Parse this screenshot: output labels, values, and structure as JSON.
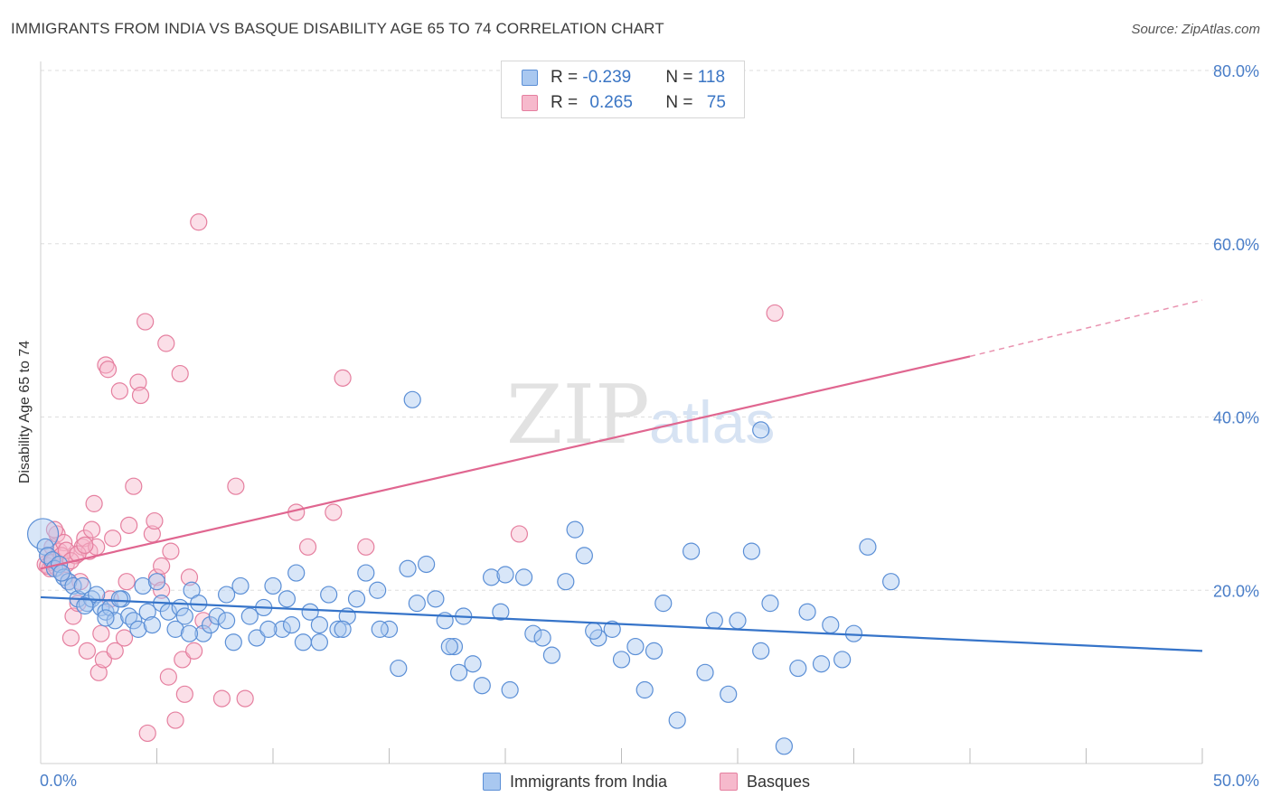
{
  "title": "IMMIGRANTS FROM INDIA VS BASQUE DISABILITY AGE 65 TO 74 CORRELATION CHART",
  "source": "Source: ZipAtlas.com",
  "watermark": {
    "zip": "ZIP",
    "atlas": "atlas"
  },
  "legend": {
    "series1": {
      "r_label": "R = ",
      "r_value": "-0.239",
      "n_label": "N = ",
      "n_value": "118"
    },
    "series2": {
      "r_label": "R = ",
      "r_value": "0.265",
      "n_label": "N = ",
      "n_value": "75"
    }
  },
  "colors": {
    "blue_fill": "#a9c8f0",
    "blue_stroke": "#5b8fd6",
    "blue_line": "#3674c9",
    "pink_fill": "#f6b9cc",
    "pink_stroke": "#e57f9f",
    "pink_line": "#e06690",
    "grid": "#dedede",
    "tick": "#4a7ec8"
  },
  "chart_data": {
    "type": "scatter",
    "title": "IMMIGRANTS FROM INDIA VS BASQUE DISABILITY AGE 65 TO 74 CORRELATION CHART",
    "xlabel": "",
    "ylabel": "Disability Age 65 to 74",
    "xlim": [
      0,
      50
    ],
    "ylim": [
      0,
      80
    ],
    "x_ticks": [
      "0.0%",
      "50.0%"
    ],
    "y_ticks": [
      "20.0%",
      "40.0%",
      "60.0%",
      "80.0%"
    ],
    "grid": true,
    "legend_position": "top-center",
    "series": [
      {
        "name": "Immigrants from India",
        "color": "blue",
        "trend": {
          "x0": 0,
          "y0": 19.2,
          "x1": 50,
          "y1": 13.0
        },
        "points": [
          [
            0.1,
            26.5
          ],
          [
            0.2,
            25.0
          ],
          [
            0.3,
            24.0
          ],
          [
            0.5,
            23.5
          ],
          [
            0.6,
            22.5
          ],
          [
            0.8,
            23.0
          ],
          [
            1.0,
            21.5
          ],
          [
            1.2,
            21.0
          ],
          [
            1.4,
            20.5
          ],
          [
            1.6,
            19.0
          ],
          [
            1.8,
            20.5
          ],
          [
            2.0,
            18.5
          ],
          [
            2.2,
            19.0
          ],
          [
            2.4,
            19.5
          ],
          [
            2.6,
            18.0
          ],
          [
            2.8,
            17.5
          ],
          [
            3.0,
            18.0
          ],
          [
            3.2,
            16.5
          ],
          [
            3.5,
            19.0
          ],
          [
            3.8,
            17.0
          ],
          [
            4.0,
            16.5
          ],
          [
            4.2,
            15.5
          ],
          [
            4.4,
            20.5
          ],
          [
            4.6,
            17.5
          ],
          [
            4.8,
            16.0
          ],
          [
            5.0,
            21.0
          ],
          [
            5.2,
            18.5
          ],
          [
            5.5,
            17.5
          ],
          [
            5.8,
            15.5
          ],
          [
            6.0,
            18.0
          ],
          [
            6.2,
            17.0
          ],
          [
            6.5,
            20.0
          ],
          [
            6.8,
            18.5
          ],
          [
            7.0,
            15.0
          ],
          [
            7.3,
            16.0
          ],
          [
            7.6,
            17.0
          ],
          [
            8.0,
            19.5
          ],
          [
            8.3,
            14.0
          ],
          [
            8.6,
            20.5
          ],
          [
            9.0,
            17.0
          ],
          [
            9.3,
            14.5
          ],
          [
            9.6,
            18.0
          ],
          [
            10.0,
            20.5
          ],
          [
            10.4,
            15.5
          ],
          [
            10.8,
            16.0
          ],
          [
            11.0,
            22.0
          ],
          [
            11.3,
            14.0
          ],
          [
            11.6,
            17.5
          ],
          [
            12.0,
            16.0
          ],
          [
            12.4,
            19.5
          ],
          [
            12.8,
            15.5
          ],
          [
            13.2,
            17.0
          ],
          [
            13.6,
            19.0
          ],
          [
            14.0,
            22.0
          ],
          [
            14.5,
            20.0
          ],
          [
            15.0,
            15.5
          ],
          [
            15.4,
            11.0
          ],
          [
            15.8,
            22.5
          ],
          [
            16.2,
            18.5
          ],
          [
            16.6,
            23.0
          ],
          [
            17.0,
            19.0
          ],
          [
            17.4,
            16.5
          ],
          [
            17.8,
            13.5
          ],
          [
            18.2,
            17.0
          ],
          [
            18.6,
            11.5
          ],
          [
            19.0,
            9.0
          ],
          [
            19.4,
            21.5
          ],
          [
            19.8,
            17.5
          ],
          [
            20.2,
            8.5
          ],
          [
            20.8,
            21.5
          ],
          [
            21.2,
            15.0
          ],
          [
            21.6,
            14.5
          ],
          [
            22.0,
            12.5
          ],
          [
            22.6,
            21.0
          ],
          [
            23.0,
            27.0
          ],
          [
            23.4,
            24.0
          ],
          [
            24.0,
            14.5
          ],
          [
            24.6,
            15.5
          ],
          [
            25.0,
            12.0
          ],
          [
            25.6,
            13.5
          ],
          [
            26.0,
            8.5
          ],
          [
            26.4,
            13.0
          ],
          [
            26.8,
            18.5
          ],
          [
            27.4,
            5.0
          ],
          [
            28.0,
            24.5
          ],
          [
            28.6,
            10.5
          ],
          [
            29.0,
            16.5
          ],
          [
            29.6,
            8.0
          ],
          [
            30.0,
            16.5
          ],
          [
            30.6,
            24.5
          ],
          [
            31.0,
            13.0
          ],
          [
            31.4,
            18.5
          ],
          [
            32.0,
            2.0
          ],
          [
            32.6,
            11.0
          ],
          [
            33.0,
            17.5
          ],
          [
            33.6,
            11.5
          ],
          [
            34.0,
            16.0
          ],
          [
            34.5,
            12.0
          ],
          [
            35.0,
            15.0
          ],
          [
            35.6,
            25.0
          ],
          [
            36.6,
            21.0
          ],
          [
            16.0,
            42.0
          ],
          [
            31.0,
            38.5
          ],
          [
            12.0,
            14.0
          ],
          [
            13.0,
            15.5
          ],
          [
            14.6,
            15.5
          ],
          [
            17.6,
            13.5
          ],
          [
            8.0,
            16.5
          ],
          [
            9.8,
            15.5
          ],
          [
            10.6,
            19.0
          ],
          [
            6.4,
            15.0
          ],
          [
            3.4,
            19.0
          ],
          [
            2.8,
            16.8
          ],
          [
            1.9,
            18.2
          ],
          [
            0.9,
            22.0
          ],
          [
            18.0,
            10.5
          ],
          [
            20.0,
            21.8
          ],
          [
            23.8,
            15.3
          ]
        ]
      },
      {
        "name": "Basques",
        "color": "pink",
        "trend": {
          "x0": 0,
          "y0": 22.5,
          "x1": 40,
          "y1": 47.0,
          "dash_x1": 50,
          "dash_y1": 53.5
        },
        "points": [
          [
            0.2,
            23.0
          ],
          [
            0.3,
            24.0
          ],
          [
            0.4,
            22.5
          ],
          [
            0.5,
            25.0
          ],
          [
            0.6,
            23.5
          ],
          [
            0.7,
            26.5
          ],
          [
            0.8,
            24.5
          ],
          [
            0.9,
            22.0
          ],
          [
            1.0,
            25.5
          ],
          [
            1.1,
            23.0
          ],
          [
            1.2,
            21.0
          ],
          [
            1.3,
            14.5
          ],
          [
            1.4,
            17.0
          ],
          [
            1.5,
            24.0
          ],
          [
            1.6,
            18.5
          ],
          [
            1.7,
            21.0
          ],
          [
            1.8,
            25.0
          ],
          [
            1.9,
            26.0
          ],
          [
            2.0,
            13.0
          ],
          [
            2.1,
            24.5
          ],
          [
            2.2,
            27.0
          ],
          [
            2.3,
            30.0
          ],
          [
            2.4,
            25.0
          ],
          [
            2.5,
            10.5
          ],
          [
            2.6,
            15.0
          ],
          [
            2.7,
            12.0
          ],
          [
            2.8,
            46.0
          ],
          [
            2.9,
            45.5
          ],
          [
            3.0,
            19.0
          ],
          [
            3.2,
            13.0
          ],
          [
            3.4,
            43.0
          ],
          [
            3.6,
            14.5
          ],
          [
            3.8,
            27.5
          ],
          [
            4.0,
            32.0
          ],
          [
            4.2,
            44.0
          ],
          [
            4.3,
            42.5
          ],
          [
            4.5,
            51.0
          ],
          [
            4.6,
            3.5
          ],
          [
            4.8,
            26.5
          ],
          [
            4.9,
            28.0
          ],
          [
            5.0,
            21.5
          ],
          [
            5.2,
            20.0
          ],
          [
            5.4,
            48.5
          ],
          [
            5.5,
            10.0
          ],
          [
            5.6,
            24.5
          ],
          [
            5.8,
            5.0
          ],
          [
            6.0,
            45.0
          ],
          [
            6.1,
            12.0
          ],
          [
            6.2,
            8.0
          ],
          [
            6.4,
            21.5
          ],
          [
            6.6,
            13.0
          ],
          [
            6.8,
            62.5
          ],
          [
            7.0,
            16.5
          ],
          [
            7.8,
            7.5
          ],
          [
            8.4,
            32.0
          ],
          [
            8.8,
            7.5
          ],
          [
            11.0,
            29.0
          ],
          [
            11.5,
            25.0
          ],
          [
            12.6,
            29.0
          ],
          [
            13.0,
            44.5
          ],
          [
            14.0,
            25.0
          ],
          [
            20.6,
            26.5
          ],
          [
            31.6,
            52.0
          ],
          [
            0.3,
            22.8
          ],
          [
            0.5,
            23.2
          ],
          [
            0.7,
            22.6
          ],
          [
            0.9,
            24.0
          ],
          [
            1.1,
            24.6
          ],
          [
            1.3,
            23.4
          ],
          [
            1.6,
            24.2
          ],
          [
            1.9,
            25.2
          ],
          [
            3.7,
            21.0
          ],
          [
            5.2,
            22.8
          ],
          [
            3.1,
            26.0
          ],
          [
            0.6,
            27.0
          ]
        ]
      }
    ]
  },
  "bottom_legend": {
    "series1": "Immigrants from India",
    "series2": "Basques"
  }
}
